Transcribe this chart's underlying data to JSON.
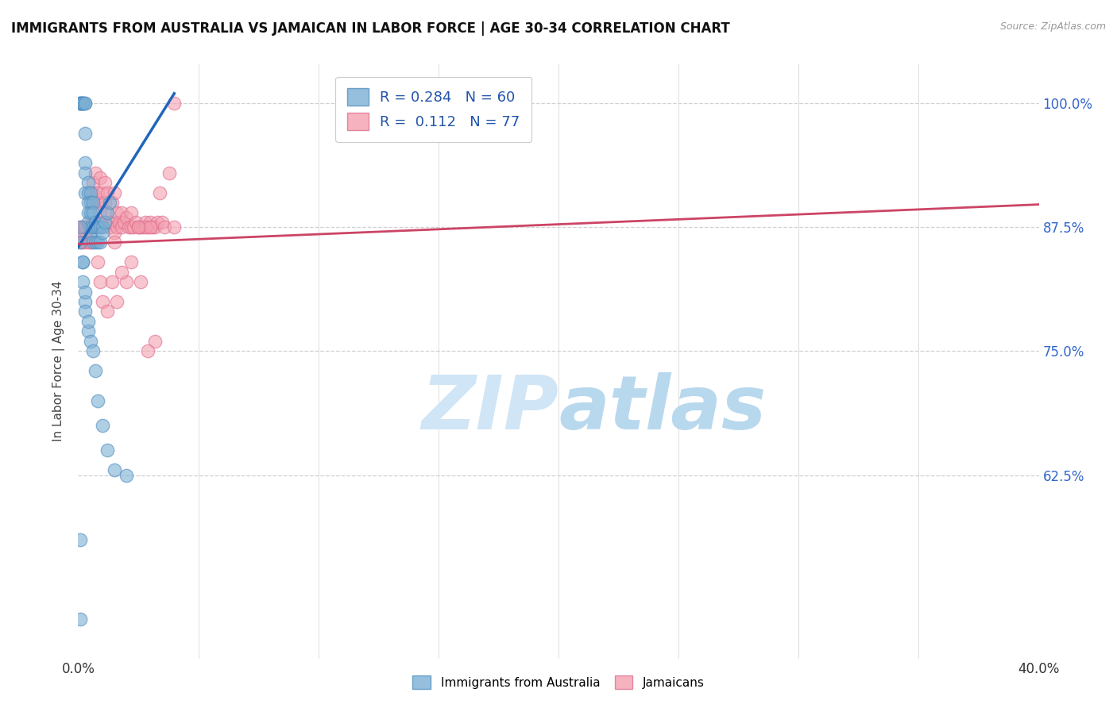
{
  "title": "IMMIGRANTS FROM AUSTRALIA VS JAMAICAN IN LABOR FORCE | AGE 30-34 CORRELATION CHART",
  "source": "Source: ZipAtlas.com",
  "ylabel": "In Labor Force | Age 30-34",
  "ytick_labels": [
    "100.0%",
    "87.5%",
    "75.0%",
    "62.5%"
  ],
  "ytick_values": [
    1.0,
    0.875,
    0.75,
    0.625
  ],
  "legend_blue_r": "0.284",
  "legend_blue_n": "60",
  "legend_pink_r": "0.112",
  "legend_pink_n": "77",
  "blue_scatter_x": [
    0.001,
    0.001,
    0.001,
    0.001,
    0.002,
    0.002,
    0.002,
    0.002,
    0.003,
    0.003,
    0.003,
    0.003,
    0.003,
    0.003,
    0.004,
    0.004,
    0.004,
    0.004,
    0.004,
    0.005,
    0.005,
    0.005,
    0.005,
    0.005,
    0.006,
    0.006,
    0.006,
    0.006,
    0.007,
    0.007,
    0.007,
    0.008,
    0.008,
    0.009,
    0.009,
    0.01,
    0.01,
    0.011,
    0.012,
    0.013,
    0.001,
    0.001,
    0.002,
    0.002,
    0.003,
    0.003,
    0.004,
    0.005,
    0.006,
    0.007,
    0.008,
    0.01,
    0.012,
    0.015,
    0.02,
    0.001,
    0.001,
    0.002,
    0.003,
    0.004
  ],
  "blue_scatter_y": [
    1.0,
    1.0,
    1.0,
    1.0,
    1.0,
    1.0,
    1.0,
    1.0,
    1.0,
    1.0,
    0.97,
    0.94,
    0.93,
    0.91,
    0.92,
    0.91,
    0.9,
    0.89,
    0.88,
    0.91,
    0.9,
    0.89,
    0.875,
    0.87,
    0.9,
    0.89,
    0.875,
    0.86,
    0.88,
    0.875,
    0.86,
    0.875,
    0.86,
    0.875,
    0.86,
    0.875,
    0.87,
    0.88,
    0.89,
    0.9,
    0.875,
    0.86,
    0.84,
    0.82,
    0.8,
    0.79,
    0.77,
    0.76,
    0.75,
    0.73,
    0.7,
    0.675,
    0.65,
    0.63,
    0.625,
    0.56,
    0.48,
    0.84,
    0.81,
    0.78
  ],
  "pink_scatter_x": [
    0.001,
    0.001,
    0.001,
    0.002,
    0.002,
    0.003,
    0.003,
    0.003,
    0.004,
    0.004,
    0.005,
    0.005,
    0.006,
    0.006,
    0.007,
    0.007,
    0.008,
    0.008,
    0.009,
    0.009,
    0.01,
    0.01,
    0.011,
    0.011,
    0.012,
    0.012,
    0.013,
    0.013,
    0.014,
    0.014,
    0.015,
    0.015,
    0.016,
    0.016,
    0.017,
    0.018,
    0.018,
    0.019,
    0.02,
    0.021,
    0.022,
    0.022,
    0.023,
    0.024,
    0.025,
    0.026,
    0.027,
    0.028,
    0.029,
    0.03,
    0.031,
    0.032,
    0.033,
    0.035,
    0.036,
    0.028,
    0.03,
    0.025,
    0.008,
    0.009,
    0.01,
    0.012,
    0.014,
    0.016,
    0.02,
    0.026,
    0.032,
    0.04,
    0.038,
    0.034,
    0.029,
    0.022,
    0.015,
    0.018,
    0.04,
    0.003,
    0.005
  ],
  "pink_scatter_y": [
    0.875,
    0.87,
    0.86,
    0.875,
    0.86,
    0.875,
    0.87,
    0.86,
    0.875,
    0.86,
    0.875,
    0.86,
    0.92,
    0.91,
    0.93,
    0.9,
    0.91,
    0.9,
    0.925,
    0.89,
    0.91,
    0.88,
    0.92,
    0.9,
    0.91,
    0.89,
    0.88,
    0.875,
    0.9,
    0.88,
    0.91,
    0.87,
    0.89,
    0.875,
    0.88,
    0.89,
    0.875,
    0.88,
    0.885,
    0.875,
    0.875,
    0.89,
    0.875,
    0.88,
    0.875,
    0.875,
    0.875,
    0.88,
    0.875,
    0.88,
    0.875,
    0.875,
    0.88,
    0.88,
    0.875,
    0.875,
    0.875,
    0.875,
    0.84,
    0.82,
    0.8,
    0.79,
    0.82,
    0.8,
    0.82,
    0.82,
    0.76,
    1.0,
    0.93,
    0.91,
    0.75,
    0.84,
    0.86,
    0.83,
    0.875,
    0.875,
    0.86
  ],
  "blue_line_x": [
    0.0,
    0.04
  ],
  "blue_line_y": [
    0.855,
    1.01
  ],
  "pink_line_x": [
    0.0,
    0.4
  ],
  "pink_line_y": [
    0.858,
    0.898
  ],
  "blue_marker_color": "#7bafd4",
  "blue_edge_color": "#5590c0",
  "pink_marker_color": "#f4a0b0",
  "pink_edge_color": "#e07090",
  "blue_line_color": "#2266bb",
  "pink_line_color": "#cc4466",
  "watermark_color": "#d0e5f5",
  "grid_color": "#d0d0d0",
  "xmin": 0.0,
  "xmax": 0.4,
  "ymin": 0.44,
  "ymax": 1.04,
  "x_tick_positions": [
    0.0,
    0.05,
    0.1,
    0.15,
    0.2,
    0.25,
    0.3,
    0.35,
    0.4
  ]
}
